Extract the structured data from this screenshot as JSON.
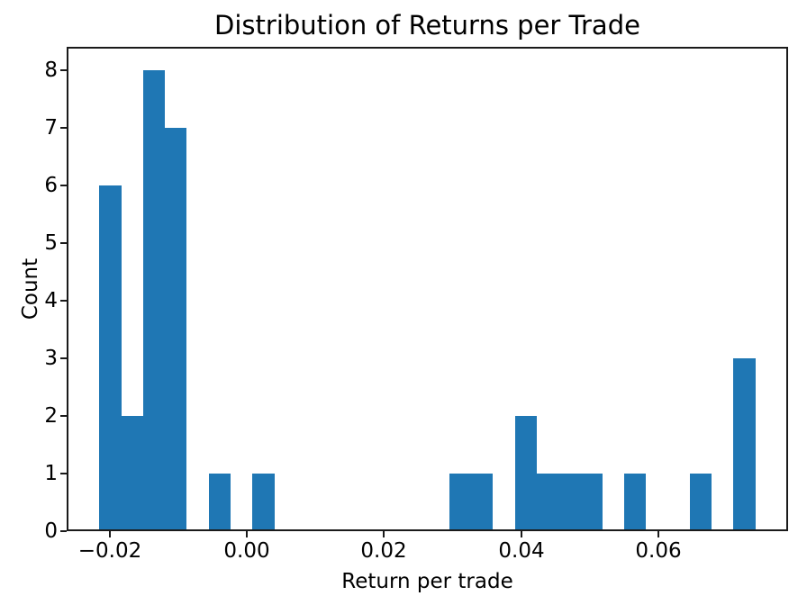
{
  "chart_data": {
    "type": "bar",
    "subtype": "histogram",
    "title": "Distribution of Returns per Trade",
    "xlabel": "Return per trade",
    "ylabel": "Count",
    "bar_color": "#1f77b4",
    "background_color": "#ffffff",
    "axis_color": "#1a1a1a",
    "grid": false,
    "legend": false,
    "xlim": [
      -0.02628,
      0.07893
    ],
    "ylim": [
      0,
      8.4
    ],
    "bins": {
      "start": -0.0215,
      "width": 0.0031883,
      "count": 30,
      "counts": [
        6,
        2,
        8,
        7,
        0,
        1,
        0,
        1,
        0,
        0,
        0,
        0,
        0,
        0,
        0,
        0,
        1,
        1,
        0,
        2,
        1,
        1,
        1,
        0,
        1,
        0,
        0,
        1,
        0,
        3
      ]
    },
    "total_trades": 37,
    "xticks": [
      {
        "value": -0.02,
        "label": "−0.02"
      },
      {
        "value": 0.0,
        "label": "0.00"
      },
      {
        "value": 0.02,
        "label": "0.02"
      },
      {
        "value": 0.04,
        "label": "0.04"
      },
      {
        "value": 0.06,
        "label": "0.06"
      }
    ],
    "yticks": [
      {
        "value": 0,
        "label": "0"
      },
      {
        "value": 1,
        "label": "1"
      },
      {
        "value": 2,
        "label": "2"
      },
      {
        "value": 3,
        "label": "3"
      },
      {
        "value": 4,
        "label": "4"
      },
      {
        "value": 5,
        "label": "5"
      },
      {
        "value": 6,
        "label": "6"
      },
      {
        "value": 7,
        "label": "7"
      },
      {
        "value": 8,
        "label": "8"
      }
    ]
  }
}
